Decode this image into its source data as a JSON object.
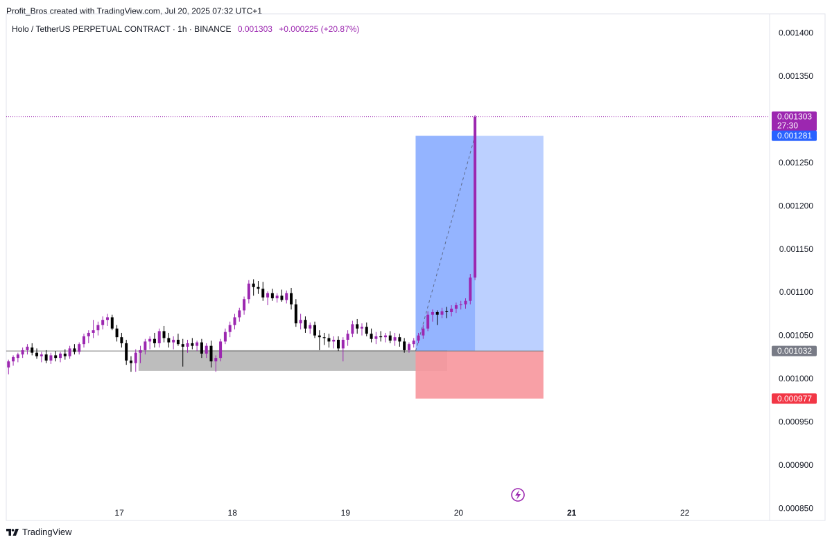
{
  "header": {
    "credit": "Profit_Bros created with TradingView.com, Jul 20, 2025 07:32 UTC+1",
    "symbol": "Holo / TetherUS PERPETUAL CONTRACT · 1h · BINANCE",
    "last_price": "0.001303",
    "change": "+0.000225 (+20.87%)"
  },
  "footer": {
    "brand": "TradingView"
  },
  "colors": {
    "up": "#9c27b0",
    "down": "#000000",
    "profit_zone": "#7aa2ff",
    "stop_zone": "#f7969c",
    "support_zone": "#b2b2b2",
    "last_price": "#9c27b0",
    "target_tag": "#2962ff",
    "entry_tag": "#787b86",
    "stop_tag": "#f23645"
  },
  "chart_data": {
    "type": "candlestick",
    "symbol": "Holo / TetherUS PERPETUAL CONTRACT",
    "interval": "1h",
    "exchange": "BINANCE",
    "y_axis": {
      "position": "right",
      "range": [
        0.000836,
        0.001422
      ],
      "ticks": [
        "0.001400",
        "0.001350",
        "0.001250",
        "0.001200",
        "0.001150",
        "0.001100",
        "0.001050",
        "0.001000",
        "0.000950",
        "0.000900",
        "0.000850"
      ]
    },
    "x_axis": {
      "range": [
        16.0,
        22.75
      ],
      "ticks": [
        {
          "label": "17",
          "value": 17,
          "bold": false
        },
        {
          "label": "18",
          "value": 18,
          "bold": false
        },
        {
          "label": "19",
          "value": 19,
          "bold": false
        },
        {
          "label": "20",
          "value": 20,
          "bold": false
        },
        {
          "label": "21",
          "value": 21,
          "bold": true
        },
        {
          "label": "22",
          "value": 22,
          "bold": false
        }
      ]
    },
    "candles_start": 16.02,
    "candles_step_hours": 1,
    "candles": [
      [
        0.001013,
        0.001022,
        0.001005,
        0.00102
      ],
      [
        0.00102,
        0.001027,
        0.001015,
        0.001025
      ],
      [
        0.001024,
        0.00103,
        0.001019,
        0.001028
      ],
      [
        0.001028,
        0.001036,
        0.001024,
        0.001033
      ],
      [
        0.001033,
        0.00104,
        0.001028,
        0.001037
      ],
      [
        0.001036,
        0.001041,
        0.001027,
        0.00103
      ],
      [
        0.00103,
        0.001035,
        0.001023,
        0.001026
      ],
      [
        0.001026,
        0.001031,
        0.001019,
        0.001028
      ],
      [
        0.001028,
        0.001033,
        0.001018,
        0.001021
      ],
      [
        0.001021,
        0.00103,
        0.001017,
        0.001027
      ],
      [
        0.001027,
        0.001032,
        0.00102,
        0.001024
      ],
      [
        0.001024,
        0.001031,
        0.001019,
        0.001029
      ],
      [
        0.001029,
        0.001034,
        0.001022,
        0.001026
      ],
      [
        0.001026,
        0.001038,
        0.001023,
        0.001035
      ],
      [
        0.001035,
        0.00104,
        0.001028,
        0.001031
      ],
      [
        0.001031,
        0.001042,
        0.001028,
        0.00104
      ],
      [
        0.00104,
        0.001052,
        0.001036,
        0.001049
      ],
      [
        0.001049,
        0.001056,
        0.001041,
        0.001053
      ],
      [
        0.001053,
        0.001068,
        0.001047,
        0.001056
      ],
      [
        0.001056,
        0.001066,
        0.00105,
        0.001062
      ],
      [
        0.001062,
        0.001072,
        0.001057,
        0.001068
      ],
      [
        0.001068,
        0.001075,
        0.001061,
        0.001071
      ],
      [
        0.001071,
        0.001074,
        0.001056,
        0.001058
      ],
      [
        0.001058,
        0.001062,
        0.001043,
        0.001048
      ],
      [
        0.001048,
        0.001053,
        0.001036,
        0.001041
      ],
      [
        0.001041,
        0.001045,
        0.001016,
        0.001021
      ],
      [
        0.001021,
        0.001026,
        0.001008,
        0.001018
      ],
      [
        0.001018,
        0.001034,
        0.001008,
        0.00103
      ],
      [
        0.00103,
        0.001038,
        0.001018,
        0.001033
      ],
      [
        0.001033,
        0.001046,
        0.001028,
        0.001043
      ],
      [
        0.001043,
        0.001049,
        0.001034,
        0.001046
      ],
      [
        0.001046,
        0.001053,
        0.001036,
        0.001041
      ],
      [
        0.001041,
        0.001058,
        0.001036,
        0.001055
      ],
      [
        0.001055,
        0.001061,
        0.001042,
        0.001047
      ],
      [
        0.001047,
        0.001053,
        0.001036,
        0.001042
      ],
      [
        0.001042,
        0.001049,
        0.001034,
        0.001045
      ],
      [
        0.001045,
        0.001052,
        0.001038,
        0.00104
      ],
      [
        0.00104,
        0.001046,
        0.001014,
        0.001037
      ],
      [
        0.001037,
        0.001045,
        0.00103,
        0.001041
      ],
      [
        0.001041,
        0.001047,
        0.001034,
        0.001038
      ],
      [
        0.001038,
        0.001044,
        0.001032,
        0.001042
      ],
      [
        0.001042,
        0.001046,
        0.001024,
        0.001029
      ],
      [
        0.001029,
        0.001041,
        0.001024,
        0.001038
      ],
      [
        0.001038,
        0.001044,
        0.001013,
        0.00102
      ],
      [
        0.00102,
        0.001027,
        0.001008,
        0.001024
      ],
      [
        0.001024,
        0.001046,
        0.00102,
        0.001043
      ],
      [
        0.001043,
        0.001058,
        0.00104,
        0.001054
      ],
      [
        0.001054,
        0.001066,
        0.001048,
        0.001062
      ],
      [
        0.001062,
        0.001075,
        0.001057,
        0.001071
      ],
      [
        0.001071,
        0.001082,
        0.001066,
        0.001079
      ],
      [
        0.001079,
        0.001095,
        0.001074,
        0.001092
      ],
      [
        0.001092,
        0.001114,
        0.001087,
        0.00111
      ],
      [
        0.00111,
        0.001115,
        0.001096,
        0.001106
      ],
      [
        0.001106,
        0.001113,
        0.001098,
        0.001104
      ],
      [
        0.001104,
        0.001112,
        0.00109,
        0.001094
      ],
      [
        0.001094,
        0.001101,
        0.001085,
        0.001099
      ],
      [
        0.001099,
        0.001104,
        0.00109,
        0.001093
      ],
      [
        0.001093,
        0.001099,
        0.001088,
        0.001096
      ],
      [
        0.001096,
        0.001103,
        0.001089,
        0.001091
      ],
      [
        0.001091,
        0.001102,
        0.001087,
        0.001099
      ],
      [
        0.001099,
        0.001105,
        0.00108,
        0.001086
      ],
      [
        0.001086,
        0.001092,
        0.00106,
        0.001064
      ],
      [
        0.001064,
        0.001075,
        0.001057,
        0.001068
      ],
      [
        0.001068,
        0.001072,
        0.001053,
        0.001058
      ],
      [
        0.001058,
        0.001065,
        0.001052,
        0.001062
      ],
      [
        0.001062,
        0.001066,
        0.001047,
        0.00105
      ],
      [
        0.00105,
        0.001056,
        0.001033,
        0.001048
      ],
      [
        0.001048,
        0.001053,
        0.001039,
        0.001047
      ],
      [
        0.001047,
        0.001052,
        0.001036,
        0.001043
      ],
      [
        0.001043,
        0.001049,
        0.001035,
        0.001045
      ],
      [
        0.001045,
        0.001049,
        0.001032,
        0.001035
      ],
      [
        0.001035,
        0.001048,
        0.00102,
        0.001045
      ],
      [
        0.001045,
        0.001056,
        0.001038,
        0.001052
      ],
      [
        0.001052,
        0.001067,
        0.001048,
        0.001063
      ],
      [
        0.001063,
        0.001069,
        0.001052,
        0.001058
      ],
      [
        0.001058,
        0.001064,
        0.00105,
        0.00106
      ],
      [
        0.00106,
        0.001065,
        0.001049,
        0.001052
      ],
      [
        0.001052,
        0.001058,
        0.001042,
        0.001046
      ],
      [
        0.001046,
        0.001054,
        0.00104,
        0.001049
      ],
      [
        0.001049,
        0.001055,
        0.001043,
        0.001048
      ],
      [
        0.001048,
        0.001053,
        0.001042,
        0.00105
      ],
      [
        0.00105,
        0.001055,
        0.001041,
        0.001044
      ],
      [
        0.001044,
        0.001053,
        0.001038,
        0.001048
      ],
      [
        0.001048,
        0.001052,
        0.001037,
        0.001043
      ],
      [
        0.001043,
        0.001047,
        0.00103,
        0.001033
      ],
      [
        0.001033,
        0.001042,
        0.00103,
        0.00104
      ],
      [
        0.00104,
        0.001047,
        0.001036,
        0.001044
      ],
      [
        0.001044,
        0.001053,
        0.001041,
        0.00105
      ],
      [
        0.00105,
        0.001062,
        0.001046,
        0.001058
      ],
      [
        0.001058,
        0.001078,
        0.001055,
        0.001074
      ],
      [
        0.001074,
        0.00108,
        0.001066,
        0.001077
      ],
      [
        0.001077,
        0.001079,
        0.001062,
        0.001074
      ],
      [
        0.001074,
        0.001082,
        0.00107,
        0.001078
      ],
      [
        0.001078,
        0.001083,
        0.00107,
        0.001077
      ],
      [
        0.001077,
        0.001085,
        0.001072,
        0.001081
      ],
      [
        0.001081,
        0.001088,
        0.001076,
        0.001085
      ],
      [
        0.001085,
        0.00109,
        0.00108,
        0.001086
      ],
      [
        0.001086,
        0.001093,
        0.001081,
        0.00109
      ],
      [
        0.00109,
        0.001121,
        0.001086,
        0.001117
      ],
      [
        0.001117,
        0.001305,
        0.001114,
        0.001303
      ]
    ],
    "zones": [
      {
        "name": "support",
        "from": 17.17,
        "to": 19.9,
        "low": 0.001009,
        "high": 0.001033
      },
      {
        "name": "long-position-profit",
        "from": 19.62,
        "to": 20.75,
        "low": 0.001032,
        "high": 0.001281
      },
      {
        "name": "long-position-stop",
        "from": 19.62,
        "to": 20.75,
        "low": 0.000977,
        "high": 0.001032
      }
    ],
    "price_tags": [
      {
        "name": "last-price",
        "value": "0.001303",
        "sub": "27:30"
      },
      {
        "name": "target",
        "value": "0.001281"
      },
      {
        "name": "entry",
        "value": "0.001032"
      },
      {
        "name": "stop",
        "value": "0.000977"
      }
    ]
  }
}
